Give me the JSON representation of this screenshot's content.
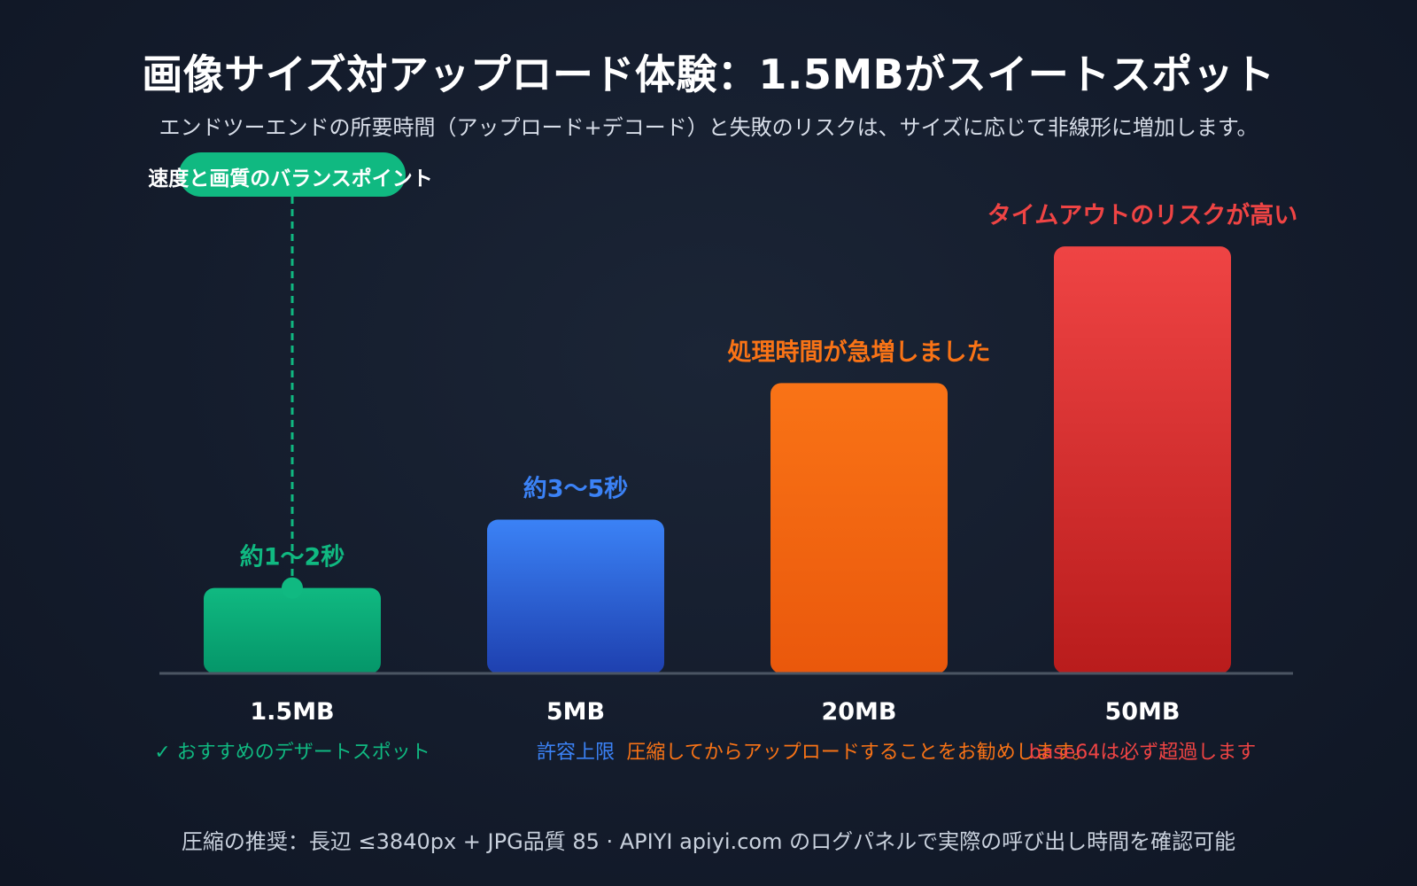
{
  "title": "画像サイズ対アップロード体験：1.5MBがスイートスポット",
  "subtitle": "エンドツーエンドの所要時間（アップロード+デコード）と失敗のリスクは、サイズに応じて非線形に増加します。",
  "footer": "圧縮の推奨：長辺 ≤3840px + JPG品質 85 · APIYI apiyi.com のログパネルで実際の呼び出し時間を確認可能",
  "callout": "速度と画質のバランスポイント",
  "colors": {
    "green": "#10b981",
    "blue": "#3b82f6",
    "orange": "#f97316",
    "red": "#ef4444",
    "axis": "#4b5563"
  },
  "chart_data": {
    "type": "bar",
    "categories": [
      "1.5MB",
      "5MB",
      "20MB",
      "50MB"
    ],
    "values": [
      1,
      1.8,
      3.4,
      5
    ],
    "ylim": [
      0,
      5.5
    ],
    "bar_labels": [
      "約1～2秒",
      "約3～5秒",
      "処理時間が急増しました",
      "タイムアウトのリスクが高い"
    ],
    "notes": [
      "✓ おすすめのデザートスポット",
      "許容上限",
      "圧縮してからアップロードすることをお勧めします。",
      "base64は必ず超過します"
    ],
    "note_colors": [
      "#10b981",
      "#3b82f6",
      "#f97316",
      "#ef4444"
    ],
    "bar_colors": [
      [
        "#10b981",
        "#059669"
      ],
      [
        "#3b82f6",
        "#1e40af"
      ],
      [
        "#f97316",
        "#ea580c"
      ],
      [
        "#ef4444",
        "#b91c1c"
      ]
    ],
    "grid": false,
    "legend": "none"
  }
}
